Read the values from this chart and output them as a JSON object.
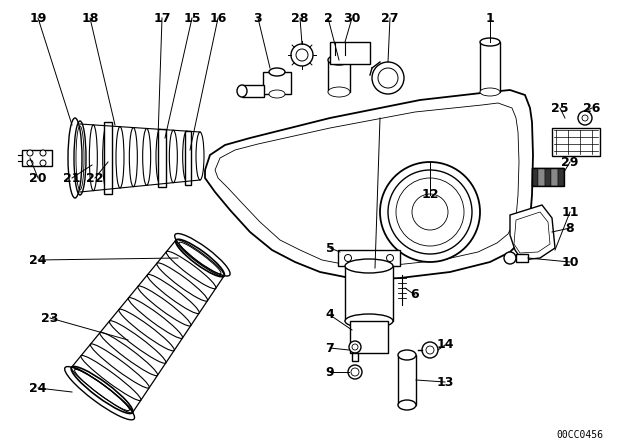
{
  "background_color": "#ffffff",
  "diagram_color": "#000000",
  "watermark": "00CC0456",
  "fig_width": 6.4,
  "fig_height": 4.48,
  "dpi": 100,
  "font_size": 9.0
}
